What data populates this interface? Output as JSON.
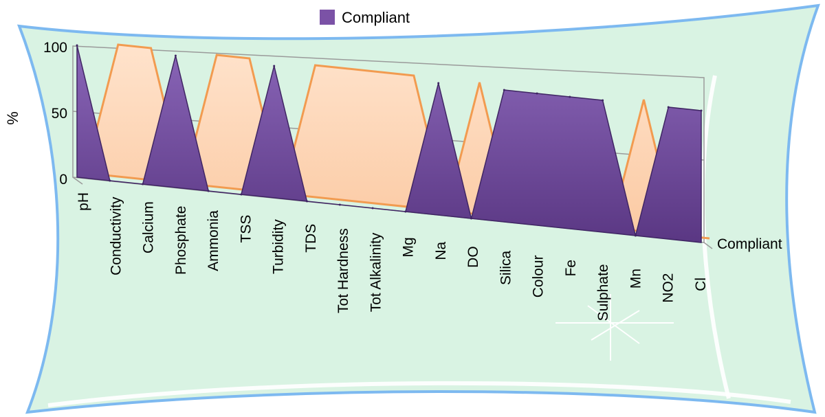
{
  "chart_data": {
    "type": "area",
    "render": "3d-area",
    "legend": {
      "label": "Compliant",
      "position": "top",
      "color": "#7b52a6"
    },
    "series_label": "Compliant",
    "ylabel": "%",
    "ylim": [
      0,
      100
    ],
    "yticks": [
      0,
      50,
      100
    ],
    "categories": [
      "pH",
      "Conductivity",
      "Calcium",
      "Phosphate",
      "Ammonia",
      "TSS",
      "Turbidity",
      "TDS",
      "Tot Hardness",
      "Tot Alkalinity",
      "Mg",
      "Na",
      "DO",
      "Silica",
      "Colour",
      "Fe",
      "Sulphate",
      "Mn",
      "NO2",
      "Cl"
    ],
    "series": [
      {
        "name": "Compliant",
        "values": [
          100,
          0,
          0,
          100,
          0,
          0,
          100,
          0,
          0,
          0,
          0,
          100,
          0,
          100,
          100,
          100,
          100,
          0,
          100,
          100
        ]
      }
    ],
    "colors": {
      "front": "#6a4494",
      "front_light": "#8f6bbd",
      "back": "#fbd3b4",
      "edge": "#f29b50",
      "grid": "#9a9a9a",
      "frame_green": "#d9f3e3",
      "frame_blue": "#7db9f0"
    }
  }
}
